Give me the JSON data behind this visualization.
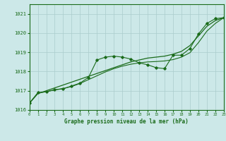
{
  "title": "Graphe pression niveau de la mer (hPa)",
  "bg_color": "#cce8e8",
  "grid_color": "#aacccc",
  "line_color": "#1a6b1a",
  "x_min": 0,
  "x_max": 23,
  "y_min": 1016.0,
  "y_max": 1021.5,
  "y_ticks": [
    1016,
    1017,
    1018,
    1019,
    1020,
    1021
  ],
  "x_ticks": [
    0,
    1,
    2,
    3,
    4,
    5,
    6,
    7,
    8,
    9,
    10,
    11,
    12,
    13,
    14,
    15,
    16,
    17,
    18,
    19,
    20,
    21,
    22,
    23
  ],
  "line_smooth_upper": [
    1016.35,
    1016.85,
    1017.0,
    1017.15,
    1017.3,
    1017.45,
    1017.6,
    1017.75,
    1017.9,
    1018.05,
    1018.2,
    1018.35,
    1018.5,
    1018.6,
    1018.7,
    1018.75,
    1018.8,
    1018.9,
    1019.05,
    1019.35,
    1019.85,
    1020.35,
    1020.65,
    1020.8
  ],
  "line_jagged": [
    1016.35,
    1016.9,
    1016.95,
    1017.05,
    1017.1,
    1017.25,
    1017.4,
    1017.7,
    1018.6,
    1018.75,
    1018.8,
    1018.75,
    1018.65,
    1018.45,
    1018.35,
    1018.2,
    1018.15,
    1018.85,
    1018.85,
    1019.2,
    1019.95,
    1020.5,
    1020.75,
    1020.8
  ],
  "line_smooth_lower": [
    1016.35,
    1016.88,
    1016.95,
    1017.05,
    1017.12,
    1017.22,
    1017.38,
    1017.58,
    1017.78,
    1017.98,
    1018.15,
    1018.28,
    1018.38,
    1018.45,
    1018.5,
    1018.52,
    1018.55,
    1018.62,
    1018.75,
    1018.98,
    1019.5,
    1020.1,
    1020.5,
    1020.8
  ]
}
